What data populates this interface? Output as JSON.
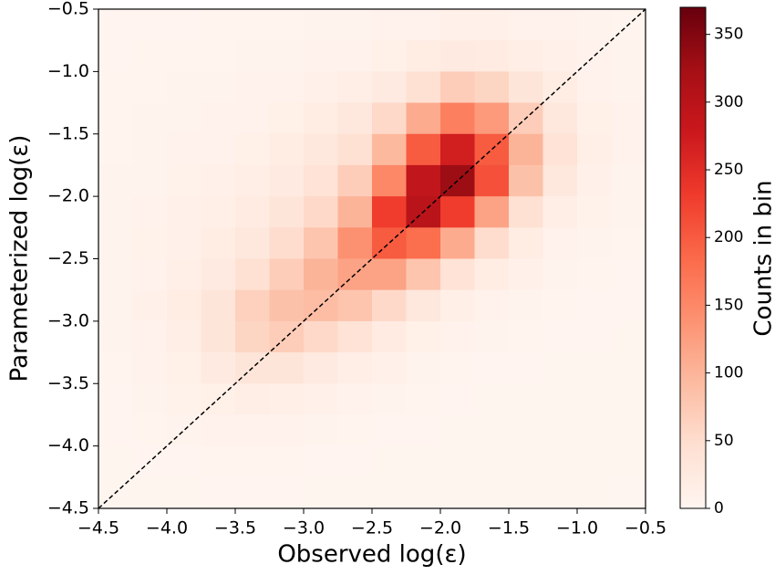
{
  "chart_data": {
    "type": "heatmap",
    "x_label": "Observed log(ε)",
    "y_label": "Parameterized log(ε)",
    "colorbar_label": "Counts in bin",
    "xlim": [
      -4.5,
      -0.5
    ],
    "ylim": [
      -4.5,
      -0.5
    ],
    "xticks": [
      {
        "value": -4.5,
        "label": "−4.5"
      },
      {
        "value": -4.0,
        "label": "−4.0"
      },
      {
        "value": -3.5,
        "label": "−3.5"
      },
      {
        "value": -3.0,
        "label": "−3.0"
      },
      {
        "value": -2.5,
        "label": "−2.5"
      },
      {
        "value": -2.0,
        "label": "−2.0"
      },
      {
        "value": -1.5,
        "label": "−1.5"
      },
      {
        "value": -1.0,
        "label": "−1.0"
      },
      {
        "value": -0.5,
        "label": "−0.5"
      }
    ],
    "yticks": [
      {
        "value": -4.5,
        "label": "−4.5"
      },
      {
        "value": -4.0,
        "label": "−4.0"
      },
      {
        "value": -3.5,
        "label": "−3.5"
      },
      {
        "value": -3.0,
        "label": "−3.0"
      },
      {
        "value": -2.5,
        "label": "−2.5"
      },
      {
        "value": -2.0,
        "label": "−2.0"
      },
      {
        "value": -1.5,
        "label": "−1.5"
      },
      {
        "value": -1.0,
        "label": "−1.0"
      },
      {
        "value": -0.5,
        "label": "−0.5"
      }
    ],
    "clim": [
      0,
      370
    ],
    "cticks": [
      0,
      50,
      100,
      150,
      200,
      250,
      300,
      350
    ],
    "colormap": [
      "#fff5f0",
      "#fee0d2",
      "#fcbba1",
      "#fc9272",
      "#fb6a4a",
      "#ef3b2c",
      "#cb181d",
      "#a50f15",
      "#67000d"
    ],
    "diagonal": true,
    "x_bins": [
      -4.5,
      -4.25,
      -4.0,
      -3.75,
      -3.5,
      -3.25,
      -3.0,
      -2.75,
      -2.5,
      -2.25,
      -2.0,
      -1.75,
      -1.5,
      -1.25,
      -1.0,
      -0.75,
      -0.5
    ],
    "y_bins": [
      -0.5,
      -0.75,
      -1.0,
      -1.25,
      -1.5,
      -1.75,
      -2.0,
      -2.25,
      -2.5,
      -2.75,
      -3.0,
      -3.25,
      -3.5,
      -3.75,
      -4.0,
      -4.25,
      -4.5
    ],
    "counts": [
      [
        2,
        2,
        2,
        3,
        3,
        3,
        4,
        5,
        6,
        8,
        10,
        10,
        8,
        6,
        4,
        3
      ],
      [
        2,
        3,
        3,
        3,
        4,
        5,
        6,
        8,
        12,
        18,
        25,
        22,
        15,
        10,
        6,
        4
      ],
      [
        3,
        3,
        4,
        5,
        6,
        8,
        10,
        15,
        25,
        45,
        70,
        60,
        35,
        18,
        8,
        5
      ],
      [
        3,
        4,
        5,
        6,
        8,
        12,
        18,
        30,
        55,
        110,
        160,
        130,
        70,
        30,
        12,
        6
      ],
      [
        3,
        4,
        6,
        8,
        12,
        18,
        28,
        45,
        95,
        200,
        270,
        200,
        100,
        40,
        14,
        6
      ],
      [
        4,
        5,
        7,
        10,
        16,
        25,
        40,
        70,
        150,
        290,
        330,
        210,
        85,
        30,
        10,
        5
      ],
      [
        4,
        6,
        9,
        14,
        22,
        35,
        55,
        100,
        230,
        300,
        230,
        120,
        45,
        16,
        7,
        4
      ],
      [
        5,
        7,
        11,
        18,
        30,
        50,
        80,
        140,
        200,
        180,
        110,
        50,
        20,
        8,
        5,
        3
      ],
      [
        5,
        8,
        14,
        25,
        45,
        70,
        100,
        120,
        120,
        80,
        40,
        18,
        9,
        5,
        3,
        2
      ],
      [
        5,
        9,
        18,
        35,
        65,
        85,
        90,
        80,
        55,
        30,
        14,
        8,
        5,
        3,
        2,
        2
      ],
      [
        4,
        8,
        16,
        35,
        60,
        70,
        55,
        40,
        22,
        12,
        6,
        4,
        3,
        2,
        2,
        1
      ],
      [
        3,
        6,
        12,
        25,
        35,
        35,
        25,
        15,
        9,
        5,
        3,
        2,
        2,
        1,
        1,
        1
      ],
      [
        2,
        4,
        7,
        12,
        15,
        14,
        10,
        6,
        4,
        3,
        2,
        1,
        1,
        1,
        1,
        1
      ],
      [
        2,
        3,
        4,
        6,
        6,
        6,
        5,
        3,
        2,
        2,
        1,
        1,
        1,
        1,
        1,
        1
      ],
      [
        1,
        2,
        2,
        3,
        3,
        3,
        2,
        2,
        1,
        1,
        1,
        1,
        1,
        1,
        1,
        1
      ],
      [
        1,
        1,
        1,
        2,
        2,
        2,
        1,
        1,
        1,
        1,
        1,
        1,
        1,
        1,
        1,
        0
      ]
    ]
  }
}
